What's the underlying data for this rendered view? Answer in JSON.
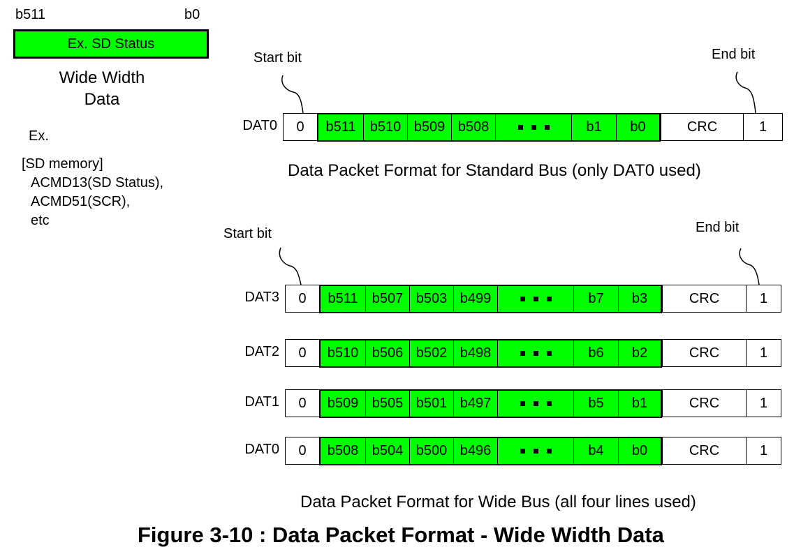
{
  "register": {
    "msb_label": "b511",
    "lsb_label": "b0",
    "box_label": "Ex. SD Status",
    "caption_line1": "Wide Width",
    "caption_line2": "Data",
    "example_heading": "Ex.",
    "example_lines": [
      "[SD memory]",
      "ACMD13(SD Status),",
      "ACMD51(SCR),",
      "etc"
    ]
  },
  "standard_bus": {
    "start_label": "Start bit",
    "end_label": "End bit",
    "caption": "Data Packet Format for Standard Bus (only DAT0 used)",
    "rows": [
      {
        "line": "DAT0",
        "start": "0",
        "bits": [
          "b511",
          "b510",
          "b509",
          "b508",
          "b1",
          "b0"
        ],
        "crc": "CRC",
        "end": "1"
      }
    ]
  },
  "wide_bus": {
    "start_label": "Start bit",
    "end_label": "End bit",
    "caption": "Data Packet Format for Wide Bus (all four lines used)",
    "rows": [
      {
        "line": "DAT3",
        "start": "0",
        "bits": [
          "b511",
          "b507",
          "b503",
          "b499",
          "b7",
          "b3"
        ],
        "crc": "CRC",
        "end": "1"
      },
      {
        "line": "DAT2",
        "start": "0",
        "bits": [
          "b510",
          "b506",
          "b502",
          "b498",
          "b6",
          "b2"
        ],
        "crc": "CRC",
        "end": "1"
      },
      {
        "line": "DAT1",
        "start": "0",
        "bits": [
          "b509",
          "b505",
          "b501",
          "b497",
          "b5",
          "b1"
        ],
        "crc": "CRC",
        "end": "1"
      },
      {
        "line": "DAT0",
        "start": "0",
        "bits": [
          "b508",
          "b504",
          "b500",
          "b496",
          "b4",
          "b0"
        ],
        "crc": "CRC",
        "end": "1"
      }
    ]
  },
  "figure_caption": "Figure 3-10 : Data Packet Format - Wide Width Data",
  "colors": {
    "data_fill": "#00ff00",
    "border": "#000000",
    "background": "#ffffff"
  }
}
